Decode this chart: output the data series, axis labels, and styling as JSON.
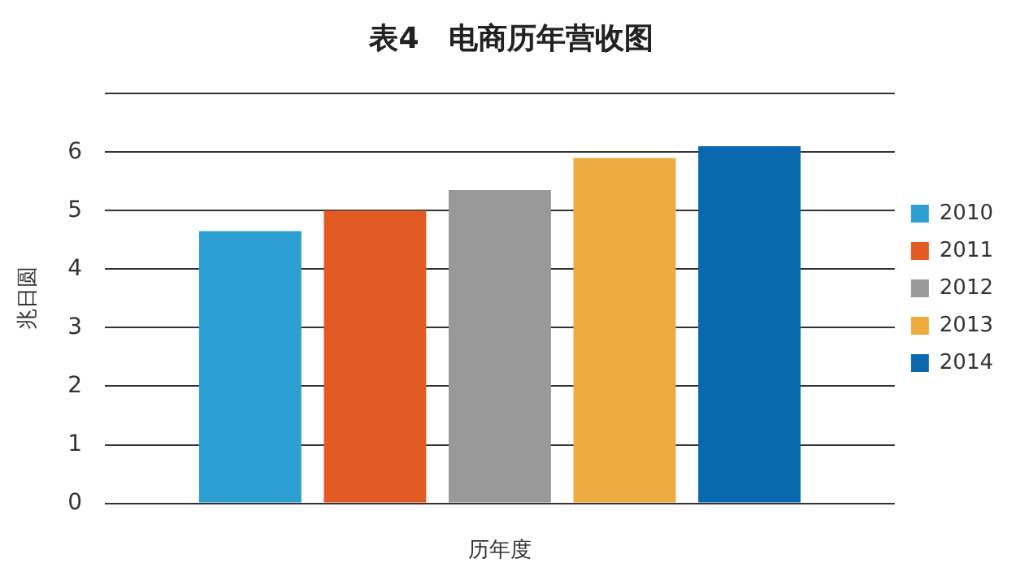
{
  "chart_data": {
    "type": "bar",
    "title": "表4　电商历年营收图",
    "xlabel": "历年度",
    "ylabel": "兆日圆",
    "categories": [
      null
    ],
    "series": [
      {
        "name": "2010",
        "color": "#2e9fd3",
        "values": [
          4.65
        ]
      },
      {
        "name": "2011",
        "color": "#e25a24",
        "values": [
          5.0
        ]
      },
      {
        "name": "2012",
        "color": "#999999",
        "values": [
          5.35
        ]
      },
      {
        "name": "2013",
        "color": "#efab3f",
        "values": [
          5.9
        ]
      },
      {
        "name": "2014",
        "color": "#0a69ae",
        "values": [
          6.1
        ]
      }
    ],
    "ylim": [
      0,
      7
    ],
    "yticks": [
      0,
      1,
      2,
      3,
      4,
      5,
      6,
      {
        "value": 7,
        "label": null
      }
    ],
    "grid": "y",
    "legend": "right"
  }
}
